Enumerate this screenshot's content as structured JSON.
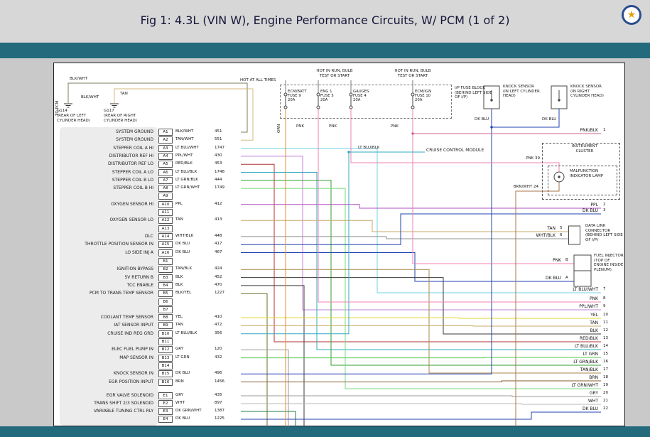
{
  "header": {
    "title": "Fig 1: 4.3L (VIN W), Engine Performance Circuits, W/ PCM (1 of 2)",
    "badge_glyph": "★"
  },
  "colors": {
    "accent_teal": "#226a7c",
    "header_bg": "#d7d7d7",
    "canvas_bg": "#c9c9c9",
    "page_bg": "#ffffff",
    "star_gold": "#e0a010",
    "star_ring": "#2b4f8e"
  },
  "wire_colors": {
    "BLK": "#3a3a3a",
    "BLK/WHT": "#7d7d5e",
    "BLK/YEL": "#6e6e2a",
    "TAN": "#c9a96a",
    "TAN/WHT": "#d4b97e",
    "TAN/BLK": "#a98a4a",
    "BRN": "#8a5a28",
    "BRN/WHT": "#a5764a",
    "YEL": "#e6d530",
    "ORN": "#e88a2a",
    "PNK": "#f080b0",
    "PNK/BLK": "#d06090",
    "RED/BLK": "#b03030",
    "PPL": "#b050c0",
    "PPL/WHT": "#c080d8",
    "DK BLU": "#2040b0",
    "LT BLU/WHT": "#70d0e8",
    "LT BLU/BLK": "#30a8c0",
    "LT GRN": "#50c850",
    "LT GRN/BLK": "#2f9f2f",
    "LT GRN/WHT": "#78d878",
    "DK GRN/WHT": "#1f7f3f",
    "GRY": "#999999",
    "WHT": "#b8b8b8",
    "WHT/BLK": "#8f8f8f"
  },
  "diagram": {
    "top_left": {
      "to_pcm": "TO PCM",
      "wire1": "BLK/WHT",
      "wire2": "BLK/WHT",
      "wire3": "TAN",
      "grounds": [
        {
          "id": "G114",
          "location": "(REAR OF LEFT CYLINDER HEAD)"
        },
        {
          "id": "G117",
          "location": "(REAR OF RIGHT CYLINDER HEAD)"
        }
      ]
    },
    "power": {
      "hot_all": "HOT AT ALL TIMES",
      "hot_run_1": "HOT IN RUN, BULB TEST OR START",
      "hot_run_2": "HOT IN RUN, BULB TEST OR START"
    },
    "fuse_block": {
      "label": "I/P FUSE BLOCK (BEHIND LEFT SIDE OF I/P)",
      "orn_label": "ORN",
      "pnk_labels": [
        "PNK",
        "PNK",
        "PNK"
      ],
      "fuses": [
        {
          "name": "ECM/BATT",
          "id": "FUSE 9",
          "rating": "20A"
        },
        {
          "name": "ENG 1",
          "id": "FUSE 5",
          "rating": "20A"
        },
        {
          "name": "GAUGES",
          "id": "FUSE 4",
          "rating": "20A"
        },
        {
          "name": "ECM/IGN",
          "id": "FUSE 10",
          "rating": "20A"
        }
      ]
    },
    "knock_sensors": [
      {
        "label": "KNOCK SENSOR (IN LEFT CYLINDER HEAD)",
        "wire": "DK BLU"
      },
      {
        "label": "KNOCK SENSOR (IN RIGHT CYLINDER HEAD)",
        "wire": "DK BLU"
      }
    ],
    "cruise": {
      "wire": "LT BLU/BLK",
      "label": "CRUISE CONTROL MODULE"
    },
    "instrument_cluster": {
      "label": "INSTRUMENT CLUSTER",
      "lamp": "MALFUNCTION INDICATOR LAMP",
      "wire_in": "PNK 39",
      "wire_out": "BRN/WHT 24"
    },
    "dlc": {
      "label": "DATA LINK CONNECTOR (BEHIND LEFT SIDE OF I/P)"
    },
    "fuel_injector": {
      "label": "FUEL INJECTOR (TOP OF ENGINE INSIDE PLENUM)"
    },
    "pins": [
      {
        "pin": "A1",
        "signal": "SYSTEM GROUND",
        "color": "BLK/WHT",
        "circuit": "451"
      },
      {
        "pin": "A2",
        "signal": "SYSTEM GROUND",
        "color": "TAN/WHT",
        "circuit": "551"
      },
      {
        "pin": "A3",
        "signal": "STEPPER COIL A HI",
        "color": "LT BLU/WHT",
        "circuit": "1747"
      },
      {
        "pin": "A4",
        "signal": "DISTRIBUTOR REF HI",
        "color": "PPL/WHT",
        "circuit": "430"
      },
      {
        "pin": "A5",
        "signal": "DISTRIBUTOR REF LO",
        "color": "RED/BLK",
        "circuit": "453"
      },
      {
        "pin": "A6",
        "signal": "STEPPER COIL A LO",
        "color": "LT BLU/BLK",
        "circuit": "1748"
      },
      {
        "pin": "A7",
        "signal": "STEPPER COIL B LO",
        "color": "LT GRN/BLK",
        "circuit": "444"
      },
      {
        "pin": "A8",
        "signal": "STEPPER COIL B HI",
        "color": "LT GRN/WHT",
        "circuit": "1749"
      },
      {
        "pin": "A9",
        "signal": "",
        "color": "",
        "circuit": ""
      },
      {
        "pin": "A10",
        "signal": "OXYGEN SENSOR HI",
        "color": "PPL",
        "circuit": "412"
      },
      {
        "pin": "A11",
        "signal": "",
        "color": "",
        "circuit": ""
      },
      {
        "pin": "A12",
        "signal": "OXYGEN SENSOR LO",
        "color": "TAN",
        "circuit": "413"
      },
      {
        "pin": "A13",
        "signal": "",
        "color": "",
        "circuit": ""
      },
      {
        "pin": "A14",
        "signal": "DLC",
        "color": "WHT/BLK",
        "circuit": "448"
      },
      {
        "pin": "A15",
        "signal": "THROTTLE POSITION SENSOR IN",
        "color": "DK BLU",
        "circuit": "417"
      },
      {
        "pin": "A16",
        "signal": "LO SIDE INJ A",
        "color": "DK BLU",
        "circuit": "467"
      },
      {
        "pin": "B1",
        "signal": "",
        "color": "",
        "circuit": ""
      },
      {
        "pin": "B2",
        "signal": "IGNITION BYPASS",
        "color": "TAN/BLK",
        "circuit": "424"
      },
      {
        "pin": "B3",
        "signal": "5V RETURN B",
        "color": "BLK",
        "circuit": "452"
      },
      {
        "pin": "B4",
        "signal": "TCC ENABLE",
        "color": "BLK",
        "circuit": "470"
      },
      {
        "pin": "B5",
        "signal": "PCM TO TRANS TEMP SENSOR",
        "color": "BLK/YEL",
        "circuit": "1227"
      },
      {
        "pin": "B6",
        "signal": "",
        "color": "",
        "circuit": ""
      },
      {
        "pin": "B7",
        "signal": "",
        "color": "",
        "circuit": ""
      },
      {
        "pin": "B8",
        "signal": "COOLANT TEMP SENSOR",
        "color": "YEL",
        "circuit": "410"
      },
      {
        "pin": "B9",
        "signal": "IAT SENSOR INPUT",
        "color": "TAN",
        "circuit": "472"
      },
      {
        "pin": "B10",
        "signal": "CRUISE IND REG GRD",
        "color": "LT BLU/BLK",
        "circuit": "356"
      },
      {
        "pin": "B11",
        "signal": "",
        "color": "",
        "circuit": ""
      },
      {
        "pin": "B12",
        "signal": "ELEC FUEL PUMP IN",
        "color": "GRY",
        "circuit": "120"
      },
      {
        "pin": "B13",
        "signal": "MAP SENSOR IN",
        "color": "LT GRN",
        "circuit": "432"
      },
      {
        "pin": "B14",
        "signal": "",
        "color": "",
        "circuit": ""
      },
      {
        "pin": "B15",
        "signal": "KNOCK SENSOR IN",
        "color": "DK BLU",
        "circuit": "496"
      },
      {
        "pin": "B16",
        "signal": "EGR POSITION INPUT",
        "color": "BRN",
        "circuit": "1456"
      },
      {
        "pin": "E1",
        "signal": "EGR VALVE SOLENOID",
        "color": "GRY",
        "circuit": "435"
      },
      {
        "pin": "E2",
        "signal": "TRANS SHIFT 2/3 SOLENOID",
        "color": "WHT",
        "circuit": "897"
      },
      {
        "pin": "E3",
        "signal": "VARIABLE TUNING CTRL RLY",
        "color": "DK GRN/WHT",
        "circuit": "1387"
      },
      {
        "pin": "E4",
        "signal": "",
        "color": "DK BLU",
        "circuit": "1225"
      }
    ],
    "right_wires": [
      {
        "color": "PNK/BLK",
        "term": "1",
        "group": "edge"
      },
      {
        "color": "PPL",
        "term": "2",
        "group": "edge"
      },
      {
        "color": "DK BLU",
        "term": "3",
        "group": "edge"
      },
      {
        "color": "TAN",
        "term": "5",
        "group": "dlc"
      },
      {
        "color": "WHT/BLK",
        "term": "6",
        "group": "dlc"
      },
      {
        "color": "PNK",
        "term": "B",
        "group": "injector"
      },
      {
        "color": "DK BLU",
        "term": "A",
        "group": "injector"
      },
      {
        "color": "LT BLU/WHT",
        "term": "7",
        "group": "edge"
      },
      {
        "color": "PNK",
        "term": "8",
        "group": "edge"
      },
      {
        "color": "PPL/WHT",
        "term": "9",
        "group": "edge"
      },
      {
        "color": "YEL",
        "term": "10",
        "group": "edge"
      },
      {
        "color": "TAN",
        "term": "11",
        "group": "edge"
      },
      {
        "color": "BLK",
        "term": "12",
        "group": "edge"
      },
      {
        "color": "RED/BLK",
        "term": "13",
        "group": "edge"
      },
      {
        "color": "LT BLU/BLK",
        "term": "14",
        "group": "edge"
      },
      {
        "color": "LT GRN",
        "term": "15",
        "group": "edge"
      },
      {
        "color": "LT GRN/BLK",
        "term": "16",
        "group": "edge"
      },
      {
        "color": "TAN/BLK",
        "term": "17",
        "group": "edge"
      },
      {
        "color": "BRN",
        "term": "18",
        "group": "edge"
      },
      {
        "color": "LT GRN/WHT",
        "term": "19",
        "group": "edge"
      },
      {
        "color": "GRY",
        "term": "20",
        "group": "edge"
      },
      {
        "color": "WHT",
        "term": "21",
        "group": "edge"
      },
      {
        "color": "DK BLU",
        "term": "22",
        "group": "edge"
      }
    ]
  }
}
